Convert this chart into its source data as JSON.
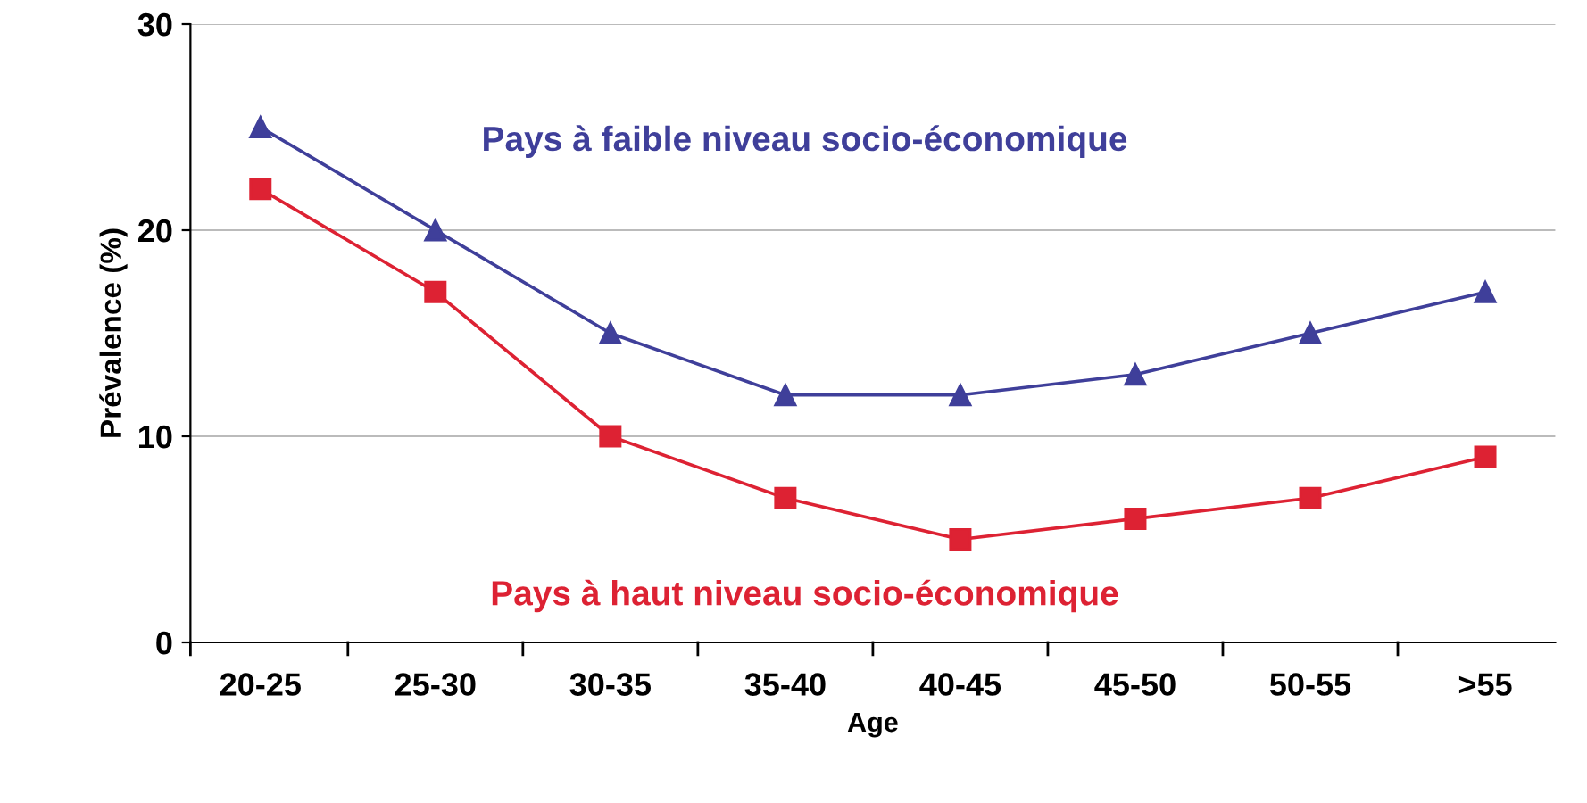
{
  "chart_data": {
    "type": "line",
    "xlabel": "Age",
    "ylabel": "Prévalence (%)",
    "categories": [
      "20-25",
      "25-30",
      "30-35",
      "35-40",
      "40-45",
      "45-50",
      "50-55",
      ">55"
    ],
    "series": [
      {
        "name": "Pays à faible niveau socio-économique",
        "color": "#3f3f9a",
        "marker": "triangle",
        "values": [
          25,
          20,
          15,
          12,
          12,
          13,
          15,
          17
        ]
      },
      {
        "name": "Pays à haut niveau socio-économique",
        "color": "#dd2233",
        "marker": "square",
        "values": [
          22,
          17,
          10,
          7,
          5,
          6,
          7,
          9
        ]
      }
    ],
    "ylim": [
      0,
      30
    ],
    "yticks": [
      0,
      10,
      20,
      30
    ],
    "grid": "y",
    "legend": false,
    "line_style": "solid"
  }
}
